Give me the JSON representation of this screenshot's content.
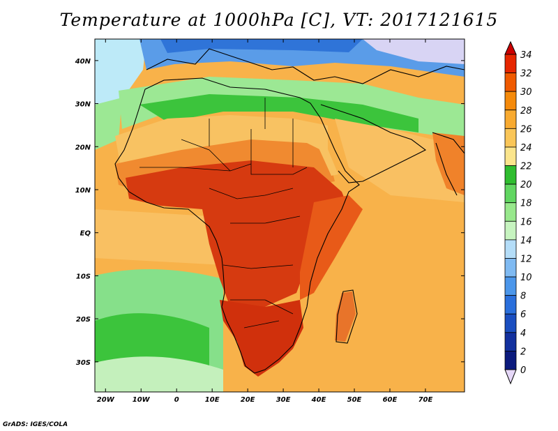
{
  "title": "Temperature at 1000hPa [C], VT: 2017121615",
  "credit": "GrADS: IGES/COLA",
  "map": {
    "variable": "Temperature at 1000hPa",
    "units": "C",
    "valid_time": "2017121615",
    "lon_range": [
      -23,
      81
    ],
    "lat_range": [
      -37,
      45
    ],
    "lon_ticks": [
      "20W",
      "10W",
      "0",
      "10E",
      "20E",
      "30E",
      "40E",
      "50E",
      "60E",
      "70E"
    ],
    "lat_ticks": [
      "40N",
      "30N",
      "20N",
      "10N",
      "EQ",
      "10S",
      "20S",
      "30S"
    ]
  },
  "colorbar": {
    "labels": [
      "34",
      "32",
      "30",
      "28",
      "26",
      "24",
      "22",
      "20",
      "18",
      "16",
      "14",
      "12",
      "10",
      "8",
      "6",
      "4",
      "2",
      "0"
    ],
    "colors": [
      "#e62600",
      "#f05a00",
      "#f58a0a",
      "#f8aa30",
      "#fac658",
      "#fbe58c",
      "#2fbd2f",
      "#61d661",
      "#98e88c",
      "#c7f4c0",
      "#b4ddf8",
      "#7fbaf2",
      "#4b96ea",
      "#2a6fdc",
      "#1a4ec0",
      "#12309e",
      "#0b1a7d"
    ],
    "top_arrow_color": "#cc0000",
    "bottom_arrow_color": "#e6d8f8"
  },
  "legend_colors": {
    "ocean": "#f8b24a",
    "land_hot": "#d63a10",
    "land_warm": "#f07820",
    "sahara": "#f8c262",
    "mediterranean": "#9ce894",
    "europe_cold": "#5a9ce8",
    "south_ocean": "#86e08a"
  }
}
